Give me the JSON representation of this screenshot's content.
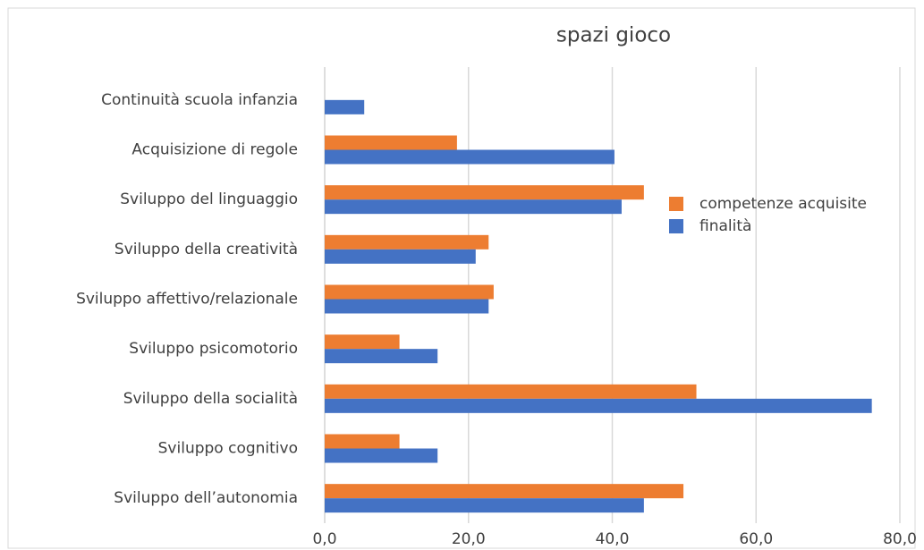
{
  "chart_data": {
    "type": "hbar",
    "title": "spazi gioco",
    "categories": [
      "Continuità scuola infanzia",
      "Acquisizione di regole",
      "Sviluppo del linguaggio",
      "Sviluppo della creatività",
      "Sviluppo affettivo/relazionale",
      "Sviluppo psicomotorio",
      "Sviluppo della socialità",
      "Sviluppo cognitivo",
      "Sviluppo dell’autonomia"
    ],
    "series": [
      {
        "name": "competenze acquisite",
        "color": "#ed7d31",
        "values": [
          null,
          18.4,
          44.4,
          22.8,
          23.5,
          10.4,
          51.7,
          10.4,
          49.9
        ]
      },
      {
        "name": "finalità",
        "color": "#4472c4",
        "values": [
          5.5,
          40.3,
          41.3,
          21.0,
          22.8,
          15.7,
          76.1,
          15.7,
          44.4
        ]
      }
    ],
    "xlim": [
      0,
      80
    ],
    "xticks": [
      {
        "value": 0,
        "label": "0,0"
      },
      {
        "value": 20,
        "label": "20,0"
      },
      {
        "value": 40,
        "label": "40,0"
      },
      {
        "value": 60,
        "label": "60,0"
      },
      {
        "value": 80,
        "label": "80,0"
      }
    ],
    "grid": true,
    "legend": "right"
  }
}
